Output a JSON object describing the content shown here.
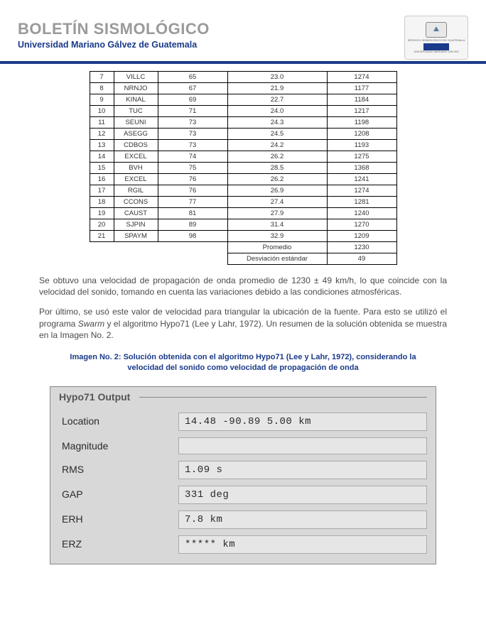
{
  "header": {
    "title": "BOLETÍN SISMOLÓGICO",
    "subtitle": "Universidad Mariano Gálvez de Guatemala",
    "logo_text1": "SERVICIO SISMOLÓGICO DE GUATEMALA",
    "logo_text2": "UNIVERSIDAD MARIANO GÁLVEZ"
  },
  "table": {
    "rows": [
      {
        "n": "7",
        "sta": "VILLC",
        "a": "65",
        "b": "23.0",
        "c": "1274"
      },
      {
        "n": "8",
        "sta": "NRNJO",
        "a": "67",
        "b": "21.9",
        "c": "1177"
      },
      {
        "n": "9",
        "sta": "KINAL",
        "a": "69",
        "b": "22.7",
        "c": "1184"
      },
      {
        "n": "10",
        "sta": "TUC",
        "a": "71",
        "b": "24.0",
        "c": "1217"
      },
      {
        "n": "11",
        "sta": "SEUNI",
        "a": "73",
        "b": "24.3",
        "c": "1198"
      },
      {
        "n": "12",
        "sta": "ASEGG",
        "a": "73",
        "b": "24.5",
        "c": "1208"
      },
      {
        "n": "13",
        "sta": "CDBOS",
        "a": "73",
        "b": "24.2",
        "c": "1193"
      },
      {
        "n": "14",
        "sta": "EXCEL",
        "a": "74",
        "b": "26.2",
        "c": "1275"
      },
      {
        "n": "15",
        "sta": "BVH",
        "a": "75",
        "b": "28.5",
        "c": "1368"
      },
      {
        "n": "16",
        "sta": "EXCEL",
        "a": "76",
        "b": "26.2",
        "c": "1241"
      },
      {
        "n": "17",
        "sta": "RGIL",
        "a": "76",
        "b": "26.9",
        "c": "1274"
      },
      {
        "n": "18",
        "sta": "CCONS",
        "a": "77",
        "b": "27.4",
        "c": "1281"
      },
      {
        "n": "19",
        "sta": "CAUST",
        "a": "81",
        "b": "27.9",
        "c": "1240"
      },
      {
        "n": "20",
        "sta": "SJPIN",
        "a": "89",
        "b": "31.4",
        "c": "1270"
      },
      {
        "n": "21",
        "sta": "SPAYM",
        "a": "98",
        "b": "32.9",
        "c": "1209"
      }
    ],
    "summary": {
      "avg_label": "Promedio",
      "avg_value": "1230",
      "std_label": "Desviación estándar",
      "std_value": "49"
    }
  },
  "paragraph1": "Se obtuvo una velocidad de propagación de onda promedio de 1230 ± 49 km/h, lo que coincide con la velocidad del sonido, tomando en cuenta las variaciones debido a las condiciones atmosféricas.",
  "paragraph2_a": "Por último, se usó este valor de velocidad para triangular la ubicación de la fuente. Para esto se utilizó el programa ",
  "paragraph2_em": "Swarm",
  "paragraph2_b": " y el algoritmo Hypo71 (Lee y Lahr, 1972). Un resumen de la solución obtenida se muestra en la Imagen No. 2.",
  "caption": "Imagen No. 2: Solución obtenida con el algoritmo Hypo71 (Lee y Lahr, 1972), considerando la velocidad del sonido como velocidad de propagación de onda",
  "output": {
    "title": "Hypo71 Output",
    "rows": [
      {
        "label": "Location",
        "value": "14.48 -90.89 5.00 km"
      },
      {
        "label": "Magnitude",
        "value": ""
      },
      {
        "label": "RMS",
        "value": "1.09 s"
      },
      {
        "label": "GAP",
        "value": "331 deg"
      },
      {
        "label": "ERH",
        "value": "7.8 km"
      },
      {
        "label": "ERZ",
        "value": "***** km"
      }
    ]
  }
}
